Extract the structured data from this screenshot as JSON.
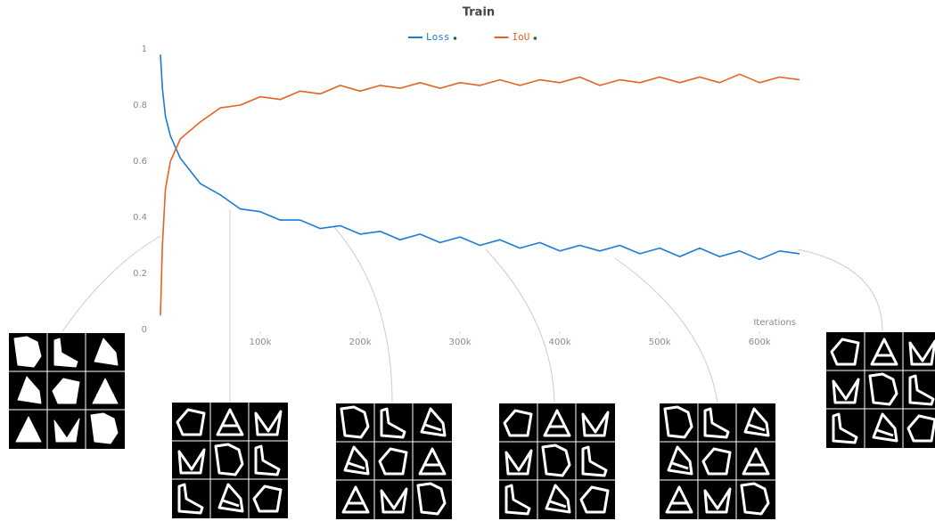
{
  "chart_data": {
    "type": "line",
    "title": "Train",
    "x_label": "Iterations",
    "x": [
      0,
      2000,
      5000,
      10000,
      20000,
      40000,
      60000,
      80000,
      100000,
      120000,
      140000,
      160000,
      180000,
      200000,
      220000,
      240000,
      260000,
      280000,
      300000,
      320000,
      340000,
      360000,
      380000,
      400000,
      420000,
      440000,
      460000,
      480000,
      500000,
      520000,
      540000,
      560000,
      580000,
      600000,
      620000,
      640000
    ],
    "series": [
      {
        "name": "Loss",
        "color": "#1c7cd5",
        "values": [
          0.98,
          0.86,
          0.76,
          0.69,
          0.61,
          0.52,
          0.48,
          0.43,
          0.42,
          0.39,
          0.39,
          0.36,
          0.37,
          0.34,
          0.35,
          0.32,
          0.34,
          0.31,
          0.33,
          0.3,
          0.32,
          0.29,
          0.31,
          0.28,
          0.3,
          0.28,
          0.3,
          0.27,
          0.29,
          0.26,
          0.29,
          0.26,
          0.28,
          0.25,
          0.28,
          0.27
        ]
      },
      {
        "name": "IoU",
        "color": "#e5621f",
        "values": [
          0.05,
          0.3,
          0.5,
          0.6,
          0.68,
          0.74,
          0.79,
          0.8,
          0.83,
          0.82,
          0.85,
          0.84,
          0.87,
          0.85,
          0.87,
          0.86,
          0.88,
          0.86,
          0.88,
          0.87,
          0.89,
          0.87,
          0.89,
          0.88,
          0.9,
          0.87,
          0.89,
          0.88,
          0.9,
          0.88,
          0.9,
          0.88,
          0.91,
          0.88,
          0.9,
          0.89
        ]
      }
    ],
    "xlim": [
      0,
      640000
    ],
    "xticks": [
      {
        "value": 100000,
        "label": "100k"
      },
      {
        "value": 200000,
        "label": "200k"
      },
      {
        "value": 300000,
        "label": "300k"
      },
      {
        "value": 400000,
        "label": "400k"
      },
      {
        "value": 500000,
        "label": "500k"
      },
      {
        "value": 600000,
        "label": "600k"
      }
    ],
    "ylim": [
      0,
      1
    ],
    "yticks": [
      0,
      0.2,
      0.4,
      0.6,
      0.8,
      1
    ],
    "grid": false
  }
}
